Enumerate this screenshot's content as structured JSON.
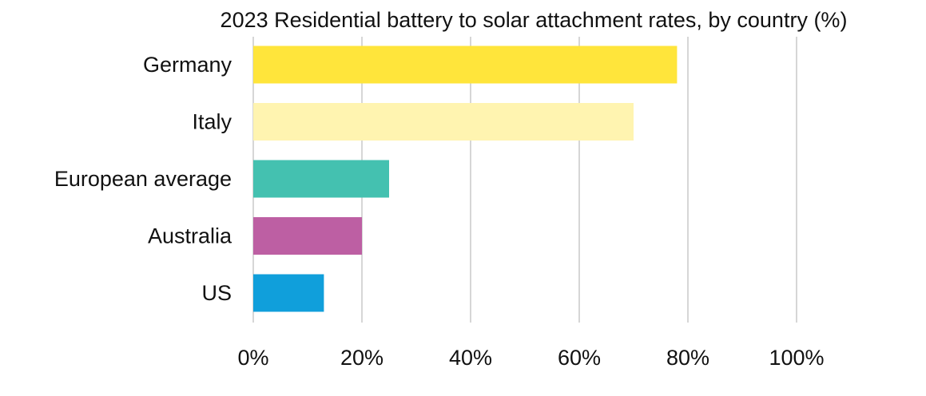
{
  "chart_data": {
    "type": "bar",
    "orientation": "horizontal",
    "title": "2023 Residential battery to solar attachment rates, by country (%)",
    "categories": [
      "Germany",
      "Italy",
      "European average",
      "Australia",
      "US"
    ],
    "values": [
      78,
      70,
      25,
      20,
      13
    ],
    "xlim": [
      0,
      100
    ],
    "xticks": [
      0,
      20,
      40,
      60,
      80,
      100
    ],
    "xtick_labels": [
      "0%",
      "20%",
      "40%",
      "60%",
      "80%",
      "100%"
    ],
    "xlabel": "",
    "ylabel": "",
    "grid": "vertical",
    "legend": "none",
    "bar_colors": [
      "#ffe53b",
      "#fff4b0",
      "#44c1b0",
      "#bd5fa3",
      "#109fdb"
    ],
    "gridline_color": "#d6d6d6",
    "text_color": "#111111"
  }
}
